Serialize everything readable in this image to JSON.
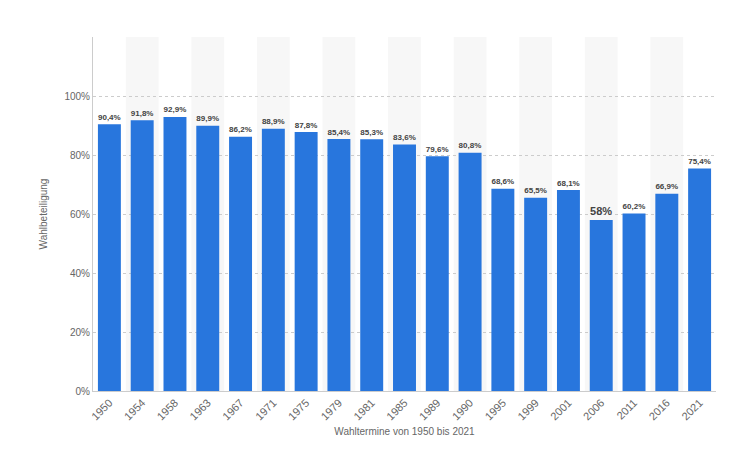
{
  "chart_data": {
    "type": "bar",
    "x_label": "Wahltermine von 1950 bis 2021",
    "y_label": "Wahlbeteiligung",
    "categories": [
      "1950",
      "1954",
      "1958",
      "1963",
      "1967",
      "1971",
      "1975",
      "1979",
      "1981",
      "1985",
      "1989",
      "1990",
      "1995",
      "1999",
      "2001",
      "2006",
      "2011",
      "2016",
      "2021"
    ],
    "values": [
      90.4,
      91.8,
      92.9,
      89.9,
      86.2,
      88.9,
      87.8,
      85.4,
      85.3,
      83.6,
      79.6,
      80.8,
      68.6,
      65.5,
      68.1,
      58,
      60.2,
      66.9,
      75.4
    ],
    "value_labels": [
      "90,4%",
      "91,8%",
      "92,9%",
      "89,9%",
      "86,2%",
      "88,9%",
      "87,8%",
      "85,4%",
      "85,3%",
      "83,6%",
      "79,6%",
      "80,8%",
      "68,6%",
      "65,5%",
      "68,1%",
      "58%",
      "60,2%",
      "66,9%",
      "75,4%"
    ],
    "color": "#2876dd",
    "ylim": [
      0,
      120
    ],
    "yticks": [
      {
        "value": 0,
        "label": "0%"
      },
      {
        "value": 20,
        "label": "20%"
      },
      {
        "value": 40,
        "label": "40%"
      },
      {
        "value": 60,
        "label": "60%"
      },
      {
        "value": 80,
        "label": "80%"
      },
      {
        "value": 100,
        "label": "100%"
      }
    ],
    "grid": true,
    "data_labels": true
  }
}
